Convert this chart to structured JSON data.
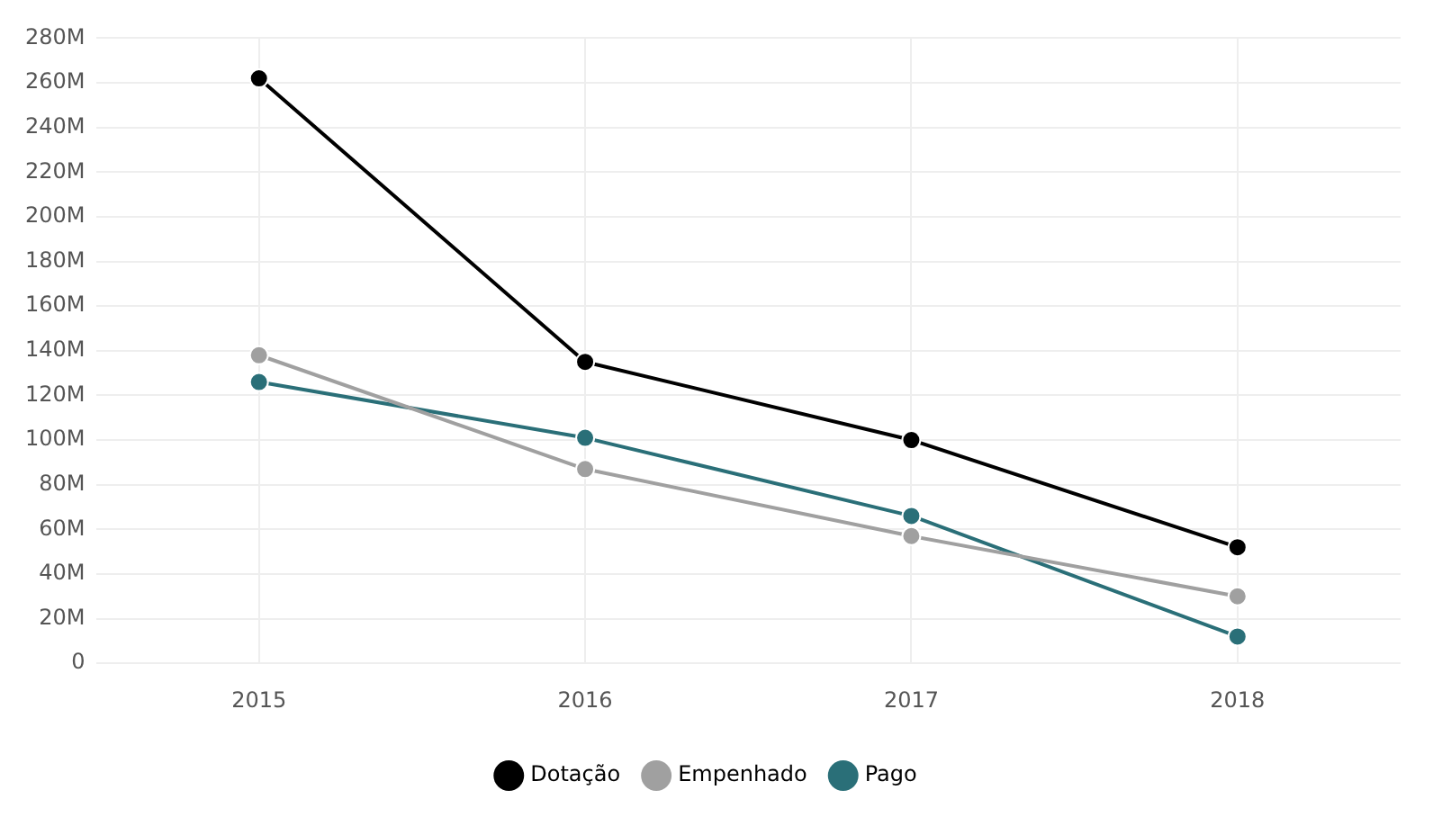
{
  "chart_data": {
    "type": "line",
    "categories": [
      "2015",
      "2016",
      "2017",
      "2018"
    ],
    "series": [
      {
        "name": "Dotação",
        "color": "#000000",
        "values": [
          262,
          135,
          100,
          52
        ]
      },
      {
        "name": "Empenhado",
        "color": "#a0a0a0",
        "values": [
          138,
          87,
          57,
          30
        ]
      },
      {
        "name": "Pago",
        "color": "#2a6f78",
        "values": [
          126,
          101,
          66,
          12
        ]
      }
    ],
    "ylim": [
      0,
      280
    ],
    "yticks": [
      {
        "value": 0,
        "label": "0"
      },
      {
        "value": 20,
        "label": "20M"
      },
      {
        "value": 40,
        "label": "40M"
      },
      {
        "value": 60,
        "label": "60M"
      },
      {
        "value": 80,
        "label": "80M"
      },
      {
        "value": 100,
        "label": "100M"
      },
      {
        "value": 120,
        "label": "120M"
      },
      {
        "value": 140,
        "label": "140M"
      },
      {
        "value": 160,
        "label": "160M"
      },
      {
        "value": 180,
        "label": "180M"
      },
      {
        "value": 200,
        "label": "200M"
      },
      {
        "value": 220,
        "label": "220M"
      },
      {
        "value": 240,
        "label": "240M"
      },
      {
        "value": 260,
        "label": "260M"
      },
      {
        "value": 280,
        "label": "280M"
      }
    ],
    "grid": true,
    "legend": "bottom",
    "marker": "circle",
    "line_style": "solid"
  }
}
